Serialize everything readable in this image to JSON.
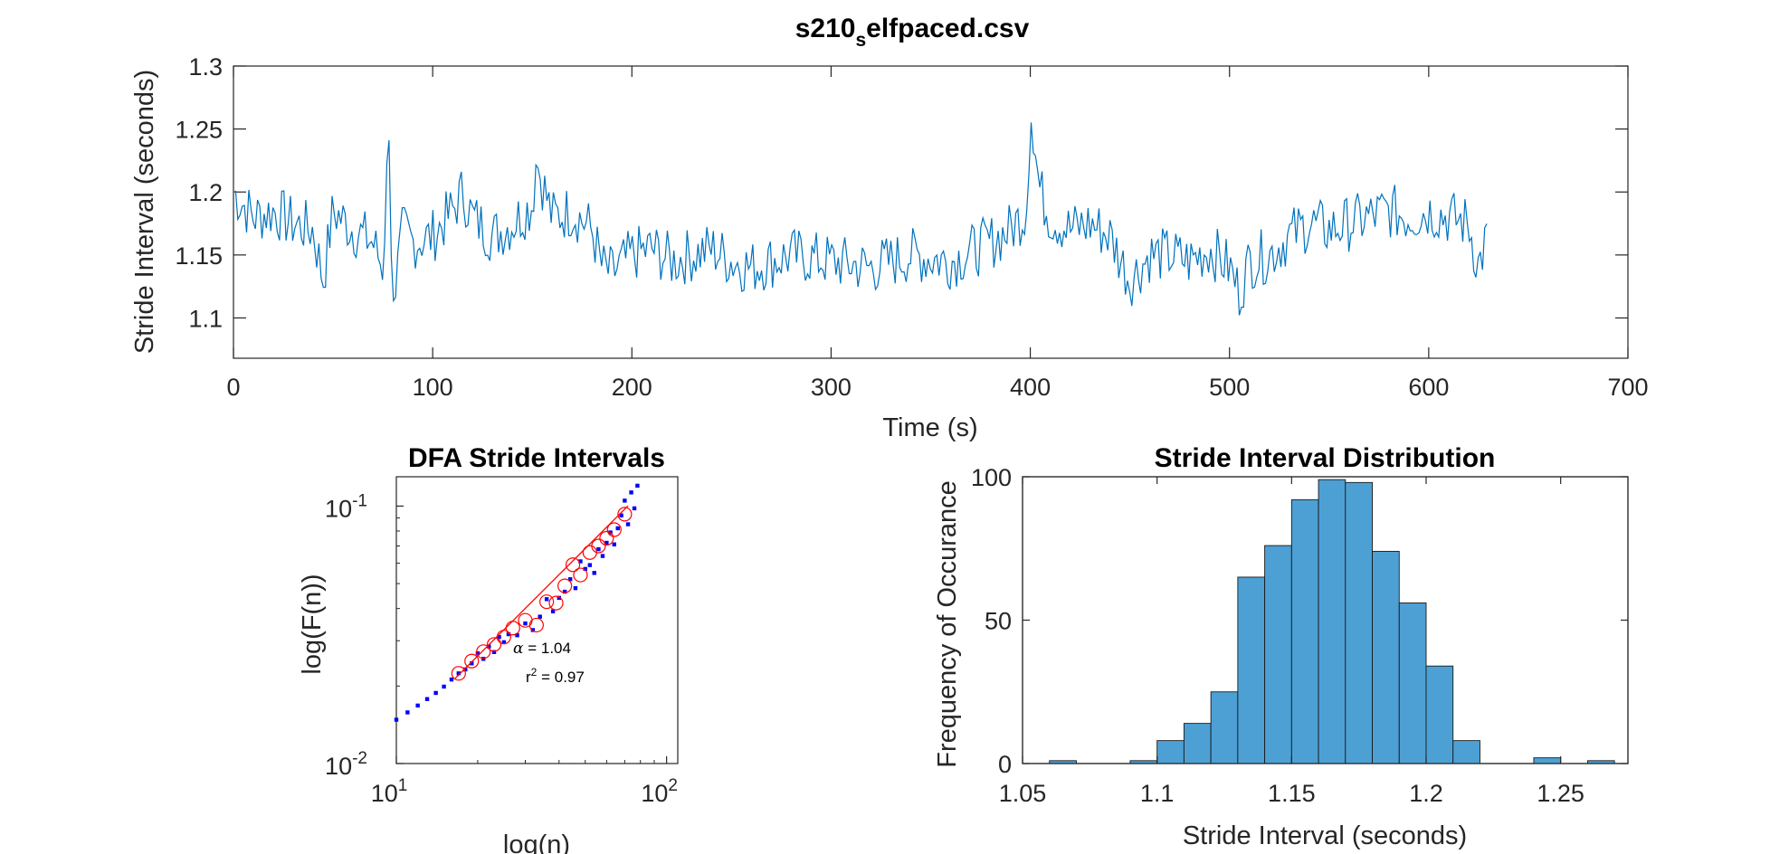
{
  "figure": {
    "main_title_base": "s210",
    "main_title_sub": "s",
    "main_title_rest": "elfpaced.csv"
  },
  "chart_data": [
    {
      "type": "line",
      "name": "time-series",
      "xlabel": "Time (s)",
      "ylabel": "Stride Interval (seconds)",
      "xlim": [
        0,
        700
      ],
      "ylim": [
        1.068,
        1.3
      ],
      "xticks": [
        "0",
        "100",
        "200",
        "300",
        "400",
        "500",
        "600",
        "700"
      ],
      "yticks": [
        "1.1",
        "1.15",
        "1.2",
        "1.25",
        "1.3"
      ],
      "color": "#0072BD",
      "series_x": [
        0,
        5,
        10,
        20,
        30,
        40,
        45,
        50,
        60,
        70,
        75,
        78,
        80,
        85,
        90,
        100,
        110,
        115,
        120,
        130,
        140,
        150,
        152,
        160,
        170,
        180,
        185,
        190,
        200,
        210,
        220,
        230,
        240,
        250,
        260,
        280,
        300,
        320,
        340,
        360,
        380,
        390,
        398,
        400,
        405,
        410,
        420,
        430,
        440,
        450,
        460,
        470,
        480,
        490,
        500,
        505,
        510,
        520,
        530,
        540,
        550,
        560,
        570,
        580,
        590,
        600,
        610,
        620,
        625,
        630
      ],
      "series_y": [
        1.2,
        1.19,
        1.18,
        1.185,
        1.175,
        1.17,
        1.13,
        1.185,
        1.17,
        1.16,
        1.14,
        1.248,
        1.11,
        1.17,
        1.16,
        1.165,
        1.185,
        1.2,
        1.18,
        1.165,
        1.175,
        1.19,
        1.225,
        1.18,
        1.185,
        1.17,
        1.14,
        1.135,
        1.15,
        1.155,
        1.145,
        1.15,
        1.155,
        1.145,
        1.14,
        1.15,
        1.145,
        1.14,
        1.15,
        1.145,
        1.16,
        1.17,
        1.185,
        1.26,
        1.2,
        1.18,
        1.17,
        1.175,
        1.165,
        1.13,
        1.15,
        1.15,
        1.145,
        1.155,
        1.14,
        1.12,
        1.145,
        1.15,
        1.165,
        1.175,
        1.17,
        1.175,
        1.18,
        1.185,
        1.18,
        1.185,
        1.18,
        1.175,
        1.14,
        1.17
      ]
    },
    {
      "type": "scatter",
      "name": "dfa",
      "title": "DFA Stride Intervals",
      "xlabel": "log(n)",
      "ylabel": "log(F(n))",
      "xscale": "log",
      "yscale": "log",
      "xlim": [
        10,
        110
      ],
      "ylim": [
        0.01,
        0.13
      ],
      "xticks": [
        {
          "base": "10",
          "exp": "1"
        },
        {
          "base": "10",
          "exp": "2"
        }
      ],
      "yticks": [
        {
          "base": "10",
          "exp": "-1"
        },
        {
          "base": "10",
          "exp": "-2"
        }
      ],
      "points_n": [
        10,
        11,
        12,
        13,
        14,
        15,
        16,
        17,
        18,
        19,
        20,
        21,
        22,
        23,
        24,
        25,
        26,
        28,
        30,
        32,
        34,
        36,
        38,
        40,
        42,
        44,
        46,
        48,
        50,
        52,
        54,
        56,
        58,
        60,
        62,
        64,
        66,
        68,
        70,
        72,
        74,
        76,
        78
      ],
      "points_F": [
        0.0148,
        0.0158,
        0.0168,
        0.0178,
        0.0188,
        0.0199,
        0.0212,
        0.0224,
        0.0232,
        0.0245,
        0.0268,
        0.0255,
        0.0285,
        0.0271,
        0.031,
        0.0296,
        0.0318,
        0.0315,
        0.035,
        0.033,
        0.0372,
        0.0435,
        0.039,
        0.044,
        0.0465,
        0.052,
        0.048,
        0.061,
        0.057,
        0.059,
        0.055,
        0.068,
        0.064,
        0.072,
        0.079,
        0.071,
        0.082,
        0.092,
        0.105,
        0.085,
        0.113,
        0.098,
        0.12
      ],
      "circle_n": [
        17,
        19,
        21,
        23,
        25,
        27,
        30,
        33,
        36,
        39,
        42,
        45,
        48,
        52,
        56,
        60,
        64,
        70
      ],
      "circle_F": [
        0.0224,
        0.025,
        0.0272,
        0.029,
        0.031,
        0.0336,
        0.036,
        0.0345,
        0.0425,
        0.042,
        0.049,
        0.0592,
        0.054,
        0.066,
        0.07,
        0.075,
        0.081,
        0.093
      ],
      "fit_n": [
        16.5,
        72
      ],
      "fit_F": [
        0.0214,
        0.1003
      ],
      "alpha_label": "α",
      "alpha_text": " = 1.04",
      "r2_base": "r",
      "r2_exp": "2",
      "r2_text": " = 0.97"
    },
    {
      "type": "bar",
      "name": "histogram",
      "title": "Stride Interval Distribution",
      "xlabel": "Stride Interval (seconds)",
      "ylabel": "Frequency of Occurance",
      "xlim": [
        1.05,
        1.275
      ],
      "ylim": [
        0,
        100
      ],
      "xticks": [
        "1.05",
        "1.1",
        "1.15",
        "1.2",
        "1.25"
      ],
      "yticks": [
        "0",
        "50",
        "100"
      ],
      "bin_width": 0.01,
      "bin_left": [
        1.06,
        1.09,
        1.1,
        1.11,
        1.12,
        1.13,
        1.14,
        1.15,
        1.16,
        1.17,
        1.18,
        1.19,
        1.2,
        1.21,
        1.24,
        1.26
      ],
      "counts": [
        1,
        1,
        8,
        14,
        25,
        65,
        76,
        92,
        99,
        98,
        74,
        56,
        34,
        8,
        2,
        1
      ],
      "fill": "#4DA0D4"
    }
  ]
}
